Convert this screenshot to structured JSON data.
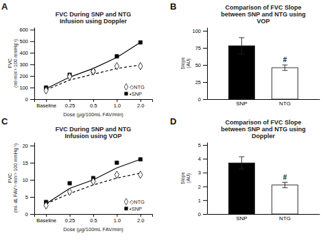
{
  "chart_data": [
    {
      "type": "line",
      "title": "FVC During SNP and NTG\nInfusion using Doppler",
      "panel_label": "A",
      "x_label": "Dose (μg/100mL FAV/min)",
      "y_label": "FVC\n(ml·min⁻¹·100 mmHg⁻¹)",
      "categories": [
        "Baseline",
        "0.25",
        "0.5",
        "1.0",
        "2.0"
      ],
      "series": [
        {
          "type": "line",
          "color": "black",
          "line_style": "solid",
          "marker": "none",
          "values": [
            90,
            190,
            265,
            360,
            490
          ]
        },
        {
          "type": "line",
          "color": "black",
          "line_style": "dashed",
          "marker": "none",
          "values": [
            80,
            165,
            215,
            265,
            295
          ]
        },
        {
          "name": "▪SNP",
          "type": "scatter",
          "color": "black",
          "marker": "square",
          "values": [
            100,
            210,
            240,
            370,
            490
          ]
        },
        {
          "name": "◇NTG",
          "type": "scatter",
          "color": "white",
          "marker": "diamond",
          "values": [
            75,
            195,
            240,
            285,
            285
          ]
        }
      ],
      "ylim": [
        0,
        620
      ],
      "yticks": [
        0,
        100,
        200,
        300,
        400,
        500,
        600
      ],
      "legend": "lower right",
      "grid": false
    },
    {
      "type": "bar",
      "title": "Comparison of FVC Slope\nbetween SNP and NTG using\nVOP",
      "panel_label": "B",
      "y_label": "Slope\n(AU)",
      "categories": [
        "SNP",
        "NTG"
      ],
      "values": [
        78,
        46
      ],
      "errors": [
        12,
        4
      ],
      "colors": [
        "black",
        "white"
      ],
      "ylim": [
        0,
        105
      ],
      "yticks": [
        0,
        25,
        50,
        75,
        100
      ],
      "annotations": [
        {
          "text": "#",
          "category": "NTG"
        }
      ],
      "grid": false
    },
    {
      "type": "line",
      "title": "FVC During SNP and NTG\nInfusion using VOP",
      "panel_label": "C",
      "x_label": "Dose (μg/100mL FAV/min)",
      "y_label": "FVC\n(ml- dL FAV⁻¹·min⁻¹·100 mmHg⁻¹)",
      "categories": [
        "Baseline",
        "0.25",
        "0.5",
        "1.0",
        "2.0"
      ],
      "series": [
        {
          "type": "line",
          "color": "black",
          "line_style": "solid",
          "marker": "none",
          "values": [
            3.0,
            7.5,
            10.0,
            13.5,
            16.0
          ]
        },
        {
          "type": "line",
          "color": "black",
          "line_style": "dashed",
          "marker": "none",
          "values": [
            3.0,
            6.0,
            8.5,
            10.5,
            12.0
          ]
        },
        {
          "name": "▪SNP",
          "type": "scatter",
          "color": "black",
          "marker": "square",
          "values": [
            3.5,
            9.0,
            10.5,
            15.0,
            16.0
          ]
        },
        {
          "name": "◇NTG",
          "type": "scatter",
          "color": "white",
          "marker": "diamond",
          "values": [
            2.5,
            6.5,
            9.5,
            11.5,
            11.5
          ]
        }
      ],
      "ylim": [
        0,
        21
      ],
      "yticks": [
        0,
        5,
        10,
        15,
        20
      ],
      "legend": "lower right",
      "grid": false
    },
    {
      "type": "bar",
      "title": "Comparison of FVC Slope\nbetween SNP and NTG using\nDoppler",
      "panel_label": "D",
      "y_label": "Slope\n(AU)",
      "categories": [
        "SNP",
        "NTG"
      ],
      "values": [
        3.7,
        2.1
      ],
      "errors": [
        0.45,
        0.2
      ],
      "colors": [
        "black",
        "white"
      ],
      "ylim": [
        0,
        5.2
      ],
      "yticks": [
        0,
        1,
        2,
        3,
        4,
        5
      ],
      "annotations": [
        {
          "text": "#",
          "category": "NTG"
        }
      ],
      "grid": false
    }
  ]
}
